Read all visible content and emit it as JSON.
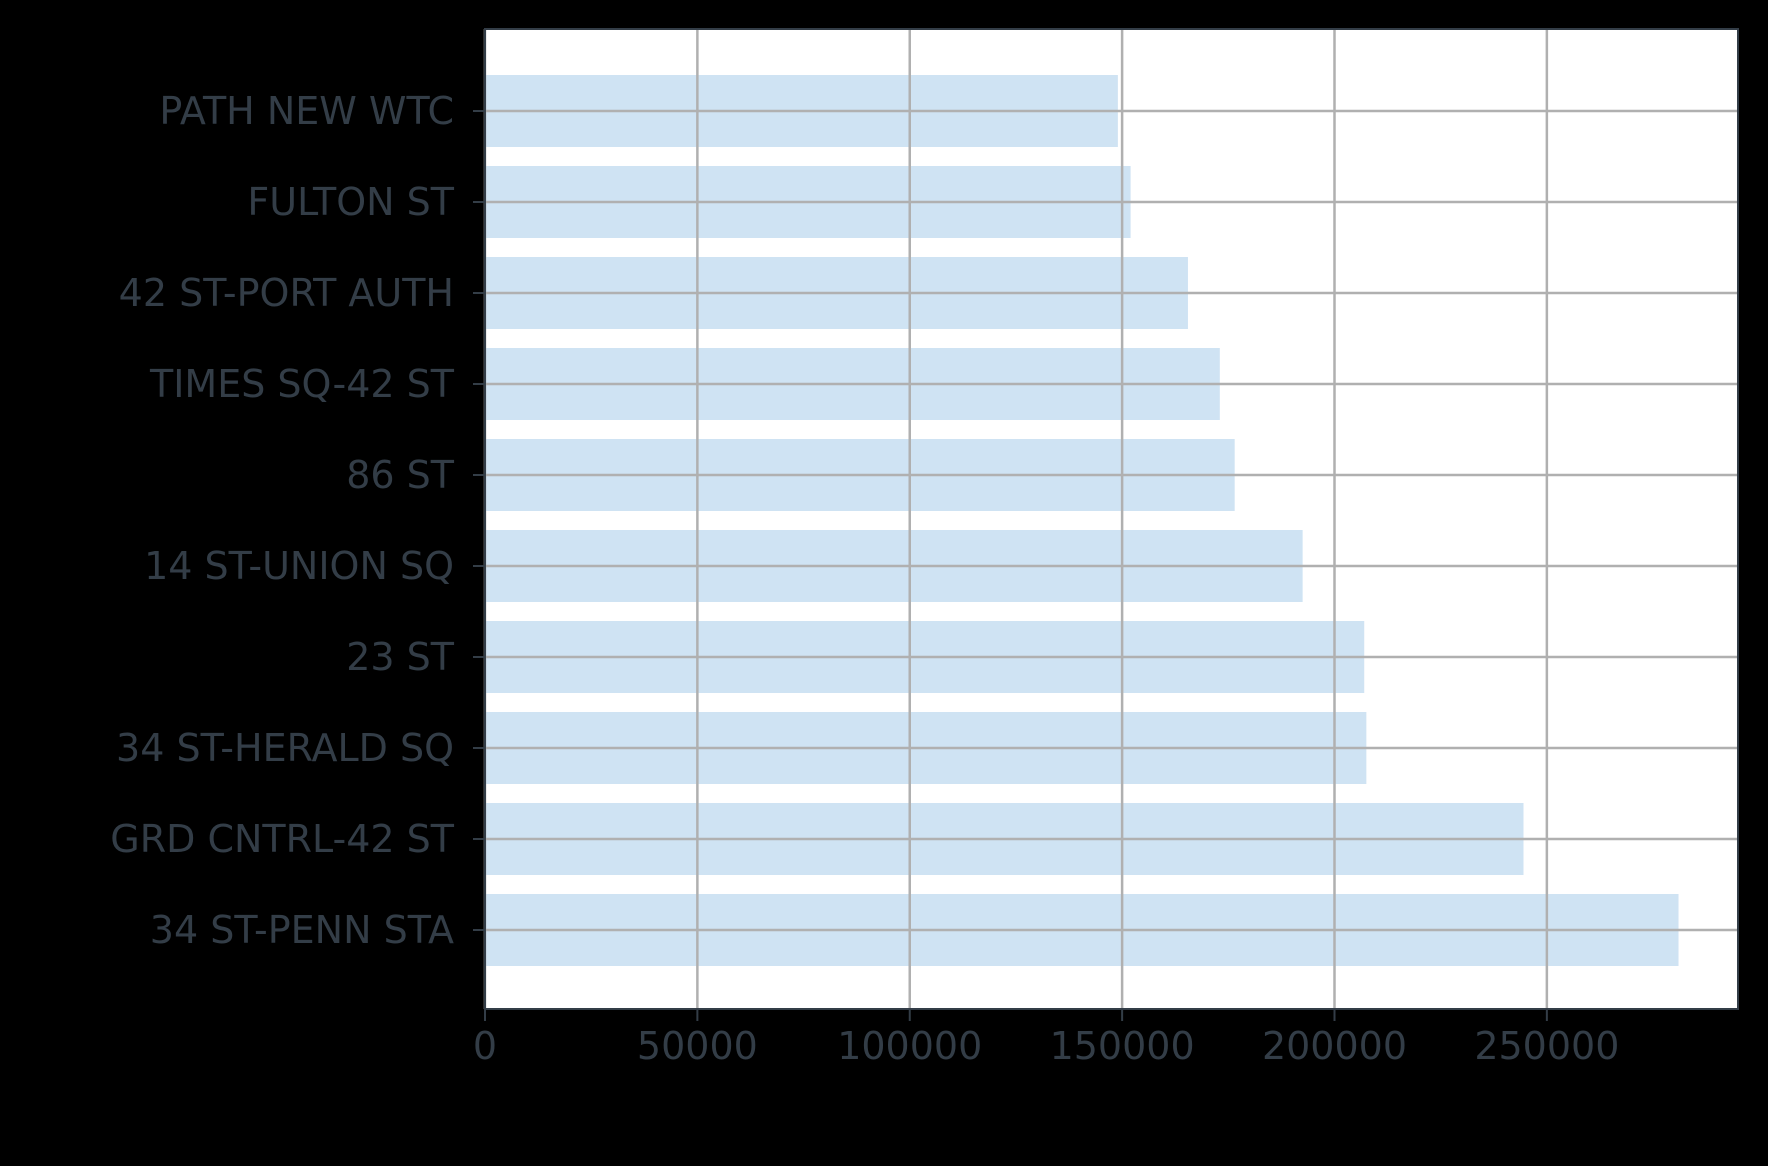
{
  "chart_data": {
    "type": "bar",
    "orientation": "horizontal",
    "categories": [
      "PATH NEW WTC",
      "FULTON ST",
      "42 ST-PORT AUTH",
      "TIMES SQ-42 ST",
      "86 ST",
      "14 ST-UNION SQ",
      "23 ST",
      "34 ST-HERALD SQ",
      "GRD CNTRL-42 ST",
      "34 ST-PENN STA"
    ],
    "values": [
      149000,
      152000,
      165500,
      173000,
      176500,
      192500,
      207000,
      207500,
      244500,
      281000
    ],
    "title": "",
    "xlabel": "",
    "ylabel": "",
    "xlim": [
      0,
      295000
    ],
    "xticks": [
      0,
      50000,
      100000,
      150000,
      200000,
      250000
    ],
    "xtick_labels": [
      "0",
      "50000",
      "100000",
      "150000",
      "200000",
      "250000"
    ],
    "grid": true,
    "legend": "none"
  },
  "colors": {
    "background": "#000000",
    "plot_background": "#ffffff",
    "bar": "#cfe3f3",
    "grid": "#b0b0b0",
    "axis": "#333d47",
    "text": "#333d47"
  }
}
